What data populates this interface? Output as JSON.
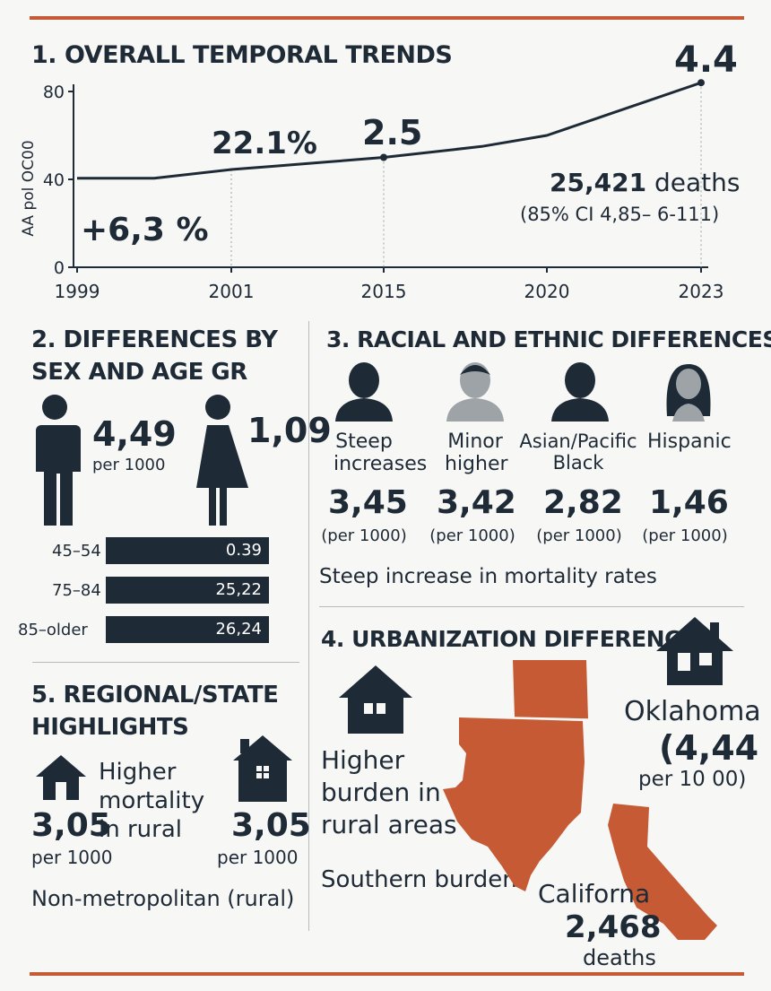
{
  "colors": {
    "dark": "#1e2a36",
    "accent": "#c55a34",
    "grey": "#9ea3a8"
  },
  "section1": {
    "title": "1. OVERALL TEMPORAL TRENDS",
    "ylabel": "AA pol OC00",
    "start_change": "+6,3 %",
    "label_2001": "22.1%",
    "label_2015": "2.5",
    "label_2023": "4.4",
    "deaths_value": "25,421",
    "deaths_word": "deaths",
    "ci": "(85% CI 4,85– 6-111)"
  },
  "chart_data": {
    "type": "line",
    "ylabel": "AA pol OC00",
    "ylim": [
      0,
      80
    ],
    "yticks": [
      "0",
      "40",
      "80"
    ],
    "xticks": [
      "1999",
      "2001",
      "2015",
      "2020",
      "2023"
    ],
    "series": [
      {
        "x": [
          1999,
          2000,
          2001,
          2005,
          2010,
          2015,
          2018,
          2020,
          2021,
          2022,
          2023
        ],
        "y": [
          40.5,
          40.5,
          44.5,
          46,
          48,
          50,
          55,
          60,
          68,
          76,
          84
        ]
      }
    ],
    "grid": false
  },
  "section2": {
    "title_line1": "2. DIFFERENCES BY",
    "title_line2": "SEX AND AGE GR",
    "male_value": "4,49",
    "male_unit": "per 1000",
    "female_value": "1,09",
    "age_bars": [
      {
        "label": "45–54",
        "value": "0.39"
      },
      {
        "label": "75–84",
        "value": "25,22"
      },
      {
        "label": "85–older",
        "value": "26,24"
      }
    ]
  },
  "section3": {
    "title": "3. RACIAL AND ETHNIC DIFFERENCES",
    "groups": [
      {
        "label_line1": "Steep",
        "label_line2": "increases",
        "value": "3,45",
        "unit": "(per 1000)"
      },
      {
        "label_line1": "Minor",
        "label_line2": "higher",
        "value": "3,42",
        "unit": "(per 1000)"
      },
      {
        "label_line1": "Asian/Pacific",
        "label_line2": "Black",
        "value": "2,82",
        "unit": "(per 1000)"
      },
      {
        "label_line1": "Hispanic",
        "label_line2": "",
        "value": "1,46",
        "unit": "(per 1000)"
      }
    ],
    "footer": "Steep increase in mortality rates"
  },
  "section4": {
    "title": "4. URBANIZATION DIFFERENCE",
    "burden_line1": "Higher",
    "burden_line2": "burden in",
    "burden_line3": "rural areas",
    "southern": "Southern burden",
    "oklahoma_name": "Oklahoma",
    "oklahoma_value": "(4,44",
    "oklahoma_unit": "per 10 00)",
    "california_name": "Californa",
    "california_value": "2,468",
    "california_unit": "deaths"
  },
  "section5": {
    "title_line1": "5. REGIONAL/STATE",
    "title_line2": "HIGHLIGHTS",
    "text_line1": "Higher",
    "text_line2": "mortality",
    "text_line3": "in rural",
    "left_value": "3,05",
    "left_unit": "per 1000",
    "right_value": "3,05",
    "right_unit": "per 1000",
    "footer": "Non-metropolitan (rural)"
  }
}
